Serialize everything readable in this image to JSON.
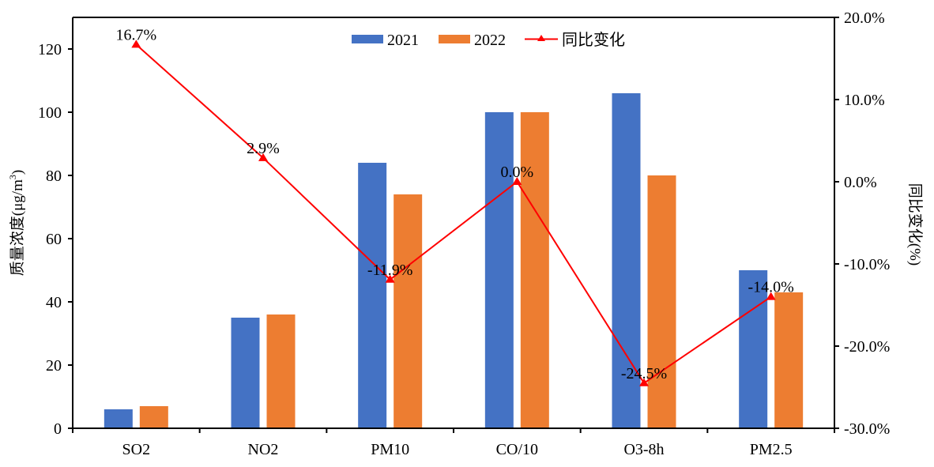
{
  "chart_data": {
    "type": "bar",
    "title": "",
    "xlabel": "",
    "ylabel": "质量浓度(μg/m³)",
    "ylabel_base": "质量浓度(μg/m",
    "ylabel_sup": "3",
    "ylabel_close": ")",
    "y2label": "同比变化(%)",
    "ylim": [
      0,
      130
    ],
    "y2lim": [
      -30,
      20
    ],
    "yticks": [
      0,
      20,
      40,
      60,
      80,
      100,
      120
    ],
    "ytick_labels": [
      "0",
      "20",
      "40",
      "60",
      "80",
      "100",
      "120"
    ],
    "y2ticks": [
      20,
      10,
      0,
      -10,
      -20,
      -30
    ],
    "y2tick_labels": [
      "20.0%",
      "10.0%",
      "0.0%",
      "-10.0%",
      "-20.0%",
      "-30.0%"
    ],
    "categories": [
      "SO2",
      "NO2",
      "PM10",
      "CO/10",
      "O3-8h",
      "PM2.5"
    ],
    "series": [
      {
        "name": "2021",
        "type": "bar",
        "axis": "left",
        "color": "#4472C4",
        "values": [
          6,
          35,
          84,
          100,
          106,
          50
        ]
      },
      {
        "name": "2022",
        "type": "bar",
        "axis": "left",
        "color": "#ED7D31",
        "values": [
          7,
          36,
          74,
          100,
          80,
          43
        ]
      },
      {
        "name": "同比变化",
        "type": "line",
        "axis": "right",
        "color": "#FF0000",
        "marker": "triangle",
        "values": [
          16.7,
          2.9,
          -11.9,
          0.0,
          -24.5,
          -14.0
        ],
        "labels": [
          "16.7%",
          "2.9%",
          "-11.9%",
          "0.0%",
          "-24.5%",
          "-14.0%"
        ]
      }
    ],
    "legend": {
      "position": "top-center",
      "entries": [
        "2021",
        "2022",
        "同比变化"
      ]
    },
    "grid": false
  }
}
